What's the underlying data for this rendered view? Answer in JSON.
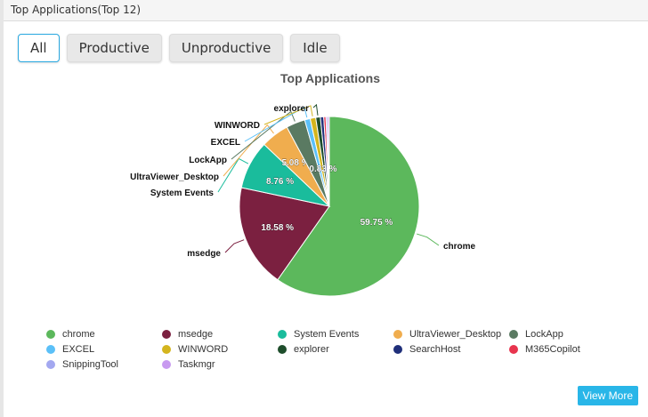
{
  "header": {
    "title": "Top Applications(Top 12)"
  },
  "tabs": [
    {
      "label": "All"
    },
    {
      "label": "Productive"
    },
    {
      "label": "Unproductive"
    },
    {
      "label": "Idle"
    }
  ],
  "view_more": "View More",
  "chart_data": {
    "type": "pie",
    "title": "Top Applications",
    "slices": [
      {
        "name": "chrome",
        "value": 59.75,
        "color": "#5cb85c",
        "label": "59.75 %"
      },
      {
        "name": "msedge",
        "value": 18.58,
        "color": "#7b2040",
        "label": "18.58 %"
      },
      {
        "name": "System Events",
        "value": 8.76,
        "color": "#1abc9c",
        "label": "8.76 %"
      },
      {
        "name": "UltraViewer_Desktop",
        "value": 5.08,
        "color": "#f0ad4e",
        "label": "5.08 %"
      },
      {
        "name": "LockApp",
        "value": 3.4,
        "color": "#5a7a62"
      },
      {
        "name": "EXCEL",
        "value": 1.0,
        "color": "#5bc0f8"
      },
      {
        "name": "WINWORD",
        "value": 1.0,
        "color": "#d4b51e"
      },
      {
        "name": "explorer",
        "value": 0.83,
        "color": "#1e4d2b",
        "label": "0.83 %"
      },
      {
        "name": "SearchHost",
        "value": 0.6,
        "color": "#1f2f7a"
      },
      {
        "name": "M365Copilot",
        "value": 0.4,
        "color": "#e8344e"
      },
      {
        "name": "SnippingTool",
        "value": 0.3,
        "color": "#a3a8f0"
      },
      {
        "name": "Taskmgr",
        "value": 0.3,
        "color": "#c89af0"
      }
    ],
    "legend": "bottom"
  }
}
